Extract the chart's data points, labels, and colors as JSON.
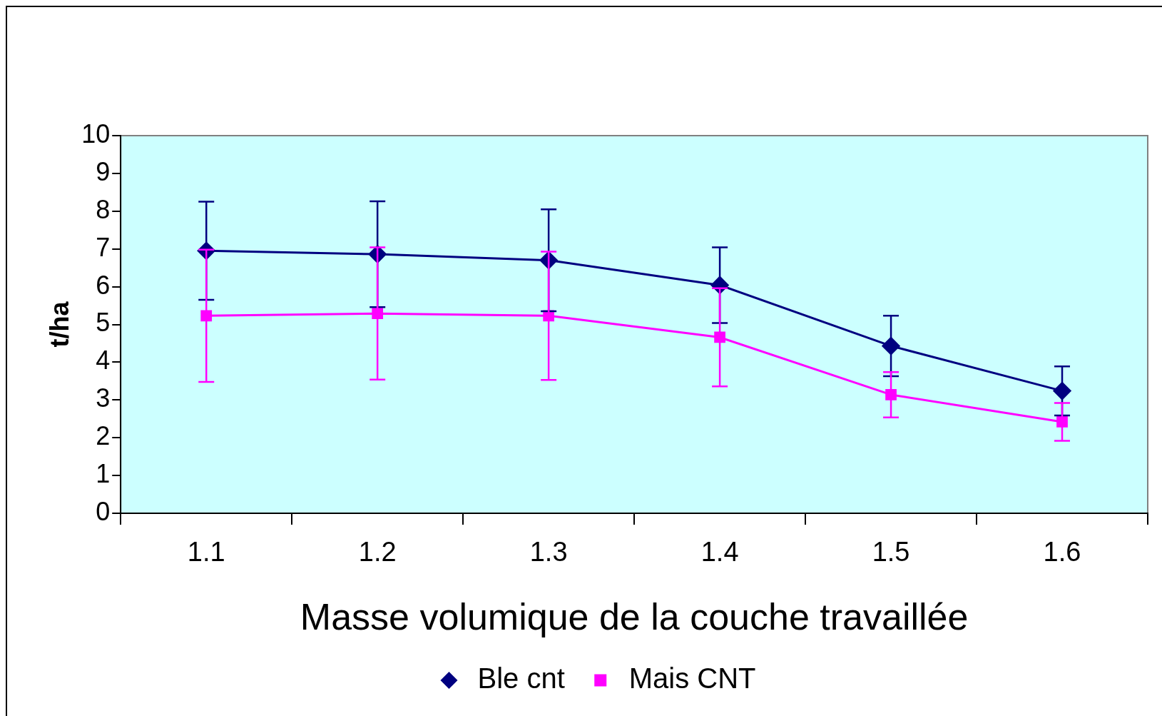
{
  "chart_data": {
    "type": "line",
    "xlabel": "Masse volumique de la couche travaillée",
    "ylabel": "t/ha",
    "categories": [
      "1.1",
      "1.2",
      "1.3",
      "1.4",
      "1.5",
      "1.6"
    ],
    "series": [
      {
        "name": "Ble cnt",
        "color": "#000080",
        "marker": "diamond",
        "values": [
          6.95,
          6.86,
          6.7,
          6.04,
          4.43,
          3.24
        ],
        "errors": [
          1.3,
          1.4,
          1.35,
          1.0,
          0.8,
          0.65
        ]
      },
      {
        "name": "Mais CNT",
        "color": "#ff00ff",
        "marker": "square",
        "values": [
          5.23,
          5.29,
          5.23,
          4.66,
          3.14,
          2.42
        ],
        "errors": [
          1.75,
          1.75,
          1.7,
          1.3,
          0.6,
          0.5
        ]
      }
    ],
    "ylim": [
      0,
      10
    ],
    "yticks": [
      0,
      1,
      2,
      3,
      4,
      5,
      6,
      7,
      8,
      9,
      10
    ],
    "grid": false,
    "legend": "bottom",
    "line_style": "solid"
  }
}
